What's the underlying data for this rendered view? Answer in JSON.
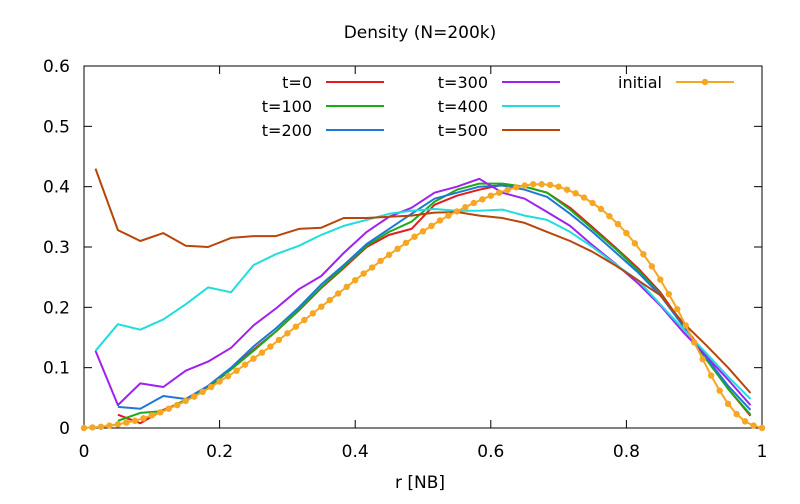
{
  "chart_data": {
    "type": "line",
    "title": "Density (N=200k)",
    "xlabel": "r [NB]",
    "ylabel": "",
    "xlim": [
      0,
      1
    ],
    "ylim": [
      0,
      0.6
    ],
    "xticks": [
      "0",
      "0.2",
      "0.4",
      "0.6",
      "0.8",
      "1"
    ],
    "yticks": [
      "0",
      "0.1",
      "0.2",
      "0.3",
      "0.4",
      "0.5",
      "0.6"
    ],
    "grid": false,
    "legend_position": "top",
    "series": [
      {
        "name": "t=0",
        "color": "#e41a1c",
        "x": [
          0.05,
          0.083,
          0.117,
          0.15,
          0.183,
          0.217,
          0.25,
          0.283,
          0.317,
          0.35,
          0.383,
          0.417,
          0.45,
          0.483,
          0.517,
          0.55,
          0.583,
          0.617,
          0.65,
          0.683,
          0.717,
          0.75,
          0.783,
          0.817,
          0.85,
          0.883,
          0.917,
          0.95,
          0.983
        ],
        "y": [
          0.022,
          0.008,
          0.03,
          0.045,
          0.068,
          0.098,
          0.13,
          0.16,
          0.195,
          0.232,
          0.265,
          0.3,
          0.32,
          0.33,
          0.37,
          0.385,
          0.395,
          0.403,
          0.4,
          0.39,
          0.365,
          0.333,
          0.3,
          0.265,
          0.225,
          0.172,
          0.12,
          0.065,
          0.02
        ]
      },
      {
        "name": "t=100",
        "color": "#1aab1a",
        "x": [
          0.05,
          0.083,
          0.117,
          0.15,
          0.183,
          0.217,
          0.25,
          0.283,
          0.317,
          0.35,
          0.383,
          0.417,
          0.45,
          0.483,
          0.517,
          0.55,
          0.583,
          0.617,
          0.65,
          0.683,
          0.717,
          0.75,
          0.783,
          0.817,
          0.85,
          0.883,
          0.917,
          0.95,
          0.983
        ],
        "y": [
          0.012,
          0.025,
          0.028,
          0.047,
          0.066,
          0.097,
          0.128,
          0.16,
          0.196,
          0.233,
          0.267,
          0.302,
          0.325,
          0.342,
          0.375,
          0.395,
          0.405,
          0.405,
          0.4,
          0.39,
          0.362,
          0.33,
          0.298,
          0.262,
          0.222,
          0.17,
          0.115,
          0.065,
          0.022
        ]
      },
      {
        "name": "t=200",
        "color": "#1f77d8",
        "x": [
          0.05,
          0.083,
          0.117,
          0.15,
          0.183,
          0.217,
          0.25,
          0.283,
          0.317,
          0.35,
          0.383,
          0.417,
          0.45,
          0.483,
          0.517,
          0.55,
          0.583,
          0.617,
          0.65,
          0.683,
          0.717,
          0.75,
          0.783,
          0.817,
          0.85,
          0.883,
          0.917,
          0.95,
          0.983
        ],
        "y": [
          0.035,
          0.032,
          0.053,
          0.048,
          0.07,
          0.1,
          0.135,
          0.165,
          0.2,
          0.238,
          0.27,
          0.305,
          0.33,
          0.355,
          0.38,
          0.39,
          0.4,
          0.402,
          0.395,
          0.383,
          0.355,
          0.325,
          0.292,
          0.258,
          0.22,
          0.17,
          0.118,
          0.07,
          0.03
        ]
      },
      {
        "name": "t=300",
        "color": "#a020f0",
        "x": [
          0.017,
          0.05,
          0.083,
          0.117,
          0.15,
          0.183,
          0.217,
          0.25,
          0.283,
          0.317,
          0.35,
          0.383,
          0.417,
          0.45,
          0.483,
          0.517,
          0.55,
          0.583,
          0.617,
          0.65,
          0.683,
          0.717,
          0.75,
          0.783,
          0.817,
          0.85,
          0.883,
          0.917,
          0.95,
          0.983
        ],
        "y": [
          0.128,
          0.038,
          0.074,
          0.068,
          0.095,
          0.11,
          0.133,
          0.17,
          0.198,
          0.23,
          0.252,
          0.29,
          0.325,
          0.35,
          0.365,
          0.39,
          0.4,
          0.413,
          0.39,
          0.38,
          0.358,
          0.335,
          0.303,
          0.273,
          0.24,
          0.203,
          0.16,
          0.12,
          0.08,
          0.038
        ]
      },
      {
        "name": "t=400",
        "color": "#22dddd",
        "x": [
          0.017,
          0.05,
          0.083,
          0.117,
          0.15,
          0.183,
          0.217,
          0.25,
          0.283,
          0.317,
          0.35,
          0.383,
          0.417,
          0.45,
          0.483,
          0.517,
          0.55,
          0.583,
          0.617,
          0.65,
          0.683,
          0.717,
          0.75,
          0.783,
          0.817,
          0.85,
          0.883,
          0.917,
          0.95,
          0.983
        ],
        "y": [
          0.128,
          0.172,
          0.163,
          0.18,
          0.205,
          0.233,
          0.225,
          0.27,
          0.288,
          0.302,
          0.32,
          0.335,
          0.345,
          0.355,
          0.36,
          0.363,
          0.36,
          0.36,
          0.362,
          0.352,
          0.345,
          0.325,
          0.3,
          0.272,
          0.245,
          0.205,
          0.165,
          0.125,
          0.085,
          0.048
        ]
      },
      {
        "name": "t=500",
        "color": "#b8460b",
        "x": [
          0.017,
          0.05,
          0.083,
          0.117,
          0.15,
          0.183,
          0.217,
          0.25,
          0.283,
          0.317,
          0.35,
          0.383,
          0.417,
          0.45,
          0.483,
          0.517,
          0.55,
          0.583,
          0.617,
          0.65,
          0.683,
          0.717,
          0.75,
          0.783,
          0.817,
          0.85,
          0.883,
          0.917,
          0.95,
          0.983
        ],
        "y": [
          0.43,
          0.328,
          0.31,
          0.323,
          0.302,
          0.3,
          0.315,
          0.318,
          0.318,
          0.33,
          0.332,
          0.348,
          0.348,
          0.35,
          0.352,
          0.357,
          0.358,
          0.352,
          0.348,
          0.34,
          0.325,
          0.31,
          0.292,
          0.27,
          0.245,
          0.22,
          0.175,
          0.138,
          0.1,
          0.058
        ]
      },
      {
        "name": "initial",
        "color": "#f5a623",
        "marker": "dot",
        "formula": "density profile with peak 0.4 at r≈0.62, zero at r=0 and r=1",
        "x": [
          0.0,
          0.0125,
          0.025,
          0.0375,
          0.05,
          0.0625,
          0.075,
          0.0875,
          0.1,
          0.1125,
          0.125,
          0.1375,
          0.15,
          0.1625,
          0.175,
          0.1875,
          0.2,
          0.2125,
          0.225,
          0.2375,
          0.25,
          0.2625,
          0.275,
          0.2875,
          0.3,
          0.3125,
          0.325,
          0.3375,
          0.35,
          0.3625,
          0.375,
          0.3875,
          0.4,
          0.4125,
          0.425,
          0.4375,
          0.45,
          0.4625,
          0.475,
          0.4875,
          0.5,
          0.5125,
          0.525,
          0.5375,
          0.55,
          0.5625,
          0.575,
          0.5875,
          0.6,
          0.6125,
          0.625,
          0.6375,
          0.65,
          0.6625,
          0.675,
          0.6875,
          0.7,
          0.7125,
          0.725,
          0.7375,
          0.75,
          0.7625,
          0.775,
          0.7875,
          0.8,
          0.8125,
          0.825,
          0.8375,
          0.85,
          0.8625,
          0.875,
          0.8875,
          0.9,
          0.9125,
          0.925,
          0.9375,
          0.95,
          0.9625,
          0.975,
          0.9875,
          1.0
        ],
        "y": [
          0.0,
          0.001,
          0.002,
          0.004,
          0.006,
          0.009,
          0.012,
          0.016,
          0.021,
          0.026,
          0.032,
          0.038,
          0.045,
          0.052,
          0.06,
          0.068,
          0.077,
          0.086,
          0.095,
          0.105,
          0.115,
          0.125,
          0.135,
          0.146,
          0.157,
          0.168,
          0.179,
          0.19,
          0.201,
          0.212,
          0.223,
          0.234,
          0.245,
          0.256,
          0.266,
          0.277,
          0.287,
          0.297,
          0.307,
          0.317,
          0.326,
          0.335,
          0.344,
          0.352,
          0.359,
          0.366,
          0.373,
          0.379,
          0.385,
          0.39,
          0.395,
          0.399,
          0.402,
          0.404,
          0.404,
          0.403,
          0.4,
          0.395,
          0.389,
          0.382,
          0.373,
          0.363,
          0.351,
          0.338,
          0.323,
          0.306,
          0.288,
          0.268,
          0.246,
          0.222,
          0.197,
          0.17,
          0.142,
          0.114,
          0.087,
          0.062,
          0.04,
          0.023,
          0.011,
          0.004,
          0.0
        ]
      }
    ]
  }
}
